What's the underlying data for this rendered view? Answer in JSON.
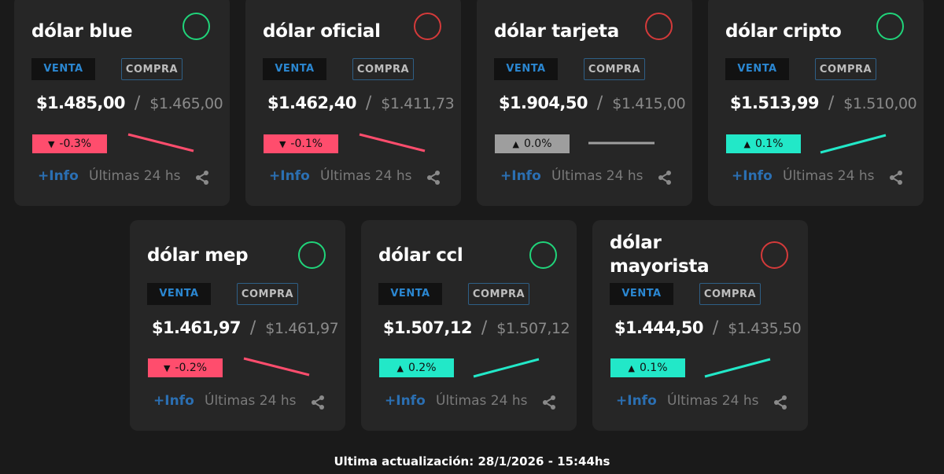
{
  "cards": [
    {
      "title": "dólar blue",
      "trend": "up",
      "venta_label": "VENTA",
      "compra_label": "COMPRA",
      "sell": "$1.485,00",
      "buy": "$1.465,00",
      "change": "-0.3%",
      "direction": "down",
      "info_label": "+Info",
      "period_label": "Últimas 24 hs"
    },
    {
      "title": "dólar oficial",
      "trend": "down",
      "venta_label": "VENTA",
      "compra_label": "COMPRA",
      "sell": "$1.462,40",
      "buy": "$1.411,73",
      "change": "-0.1%",
      "direction": "down",
      "info_label": "+Info",
      "period_label": "Últimas 24 hs"
    },
    {
      "title": "dólar tarjeta",
      "trend": "down",
      "venta_label": "VENTA",
      "compra_label": "COMPRA",
      "sell": "$1.904,50",
      "buy": "$1.415,00",
      "change": "0.0%",
      "direction": "flat",
      "info_label": "+Info",
      "period_label": "Últimas 24 hs"
    },
    {
      "title": "dólar cripto",
      "trend": "up",
      "venta_label": "VENTA",
      "compra_label": "COMPRA",
      "sell": "$1.513,99",
      "buy": "$1.510,00",
      "change": "0.1%",
      "direction": "up",
      "info_label": "+Info",
      "period_label": "Últimas 24 hs"
    },
    {
      "title": "dólar mep",
      "trend": "up",
      "venta_label": "VENTA",
      "compra_label": "COMPRA",
      "sell": "$1.461,97",
      "buy": "$1.461,97",
      "change": "-0.2%",
      "direction": "down",
      "info_label": "+Info",
      "period_label": "Últimas 24 hs"
    },
    {
      "title": "dólar ccl",
      "trend": "up",
      "venta_label": "VENTA",
      "compra_label": "COMPRA",
      "sell": "$1.507,12",
      "buy": "$1.507,12",
      "change": "0.2%",
      "direction": "up",
      "info_label": "+Info",
      "period_label": "Últimas 24 hs"
    },
    {
      "title": "dólar mayorista",
      "trend": "down",
      "venta_label": "VENTA",
      "compra_label": "COMPRA",
      "sell": "$1.444,50",
      "buy": "$1.435,50",
      "change": "0.1%",
      "direction": "up",
      "info_label": "+Info",
      "period_label": "Últimas 24 hs"
    }
  ],
  "footer": {
    "last_update": "Ultima actualización: 28/1/2026 - 15:44hs"
  },
  "colors": {
    "up": "#22e8c8",
    "down": "#ff4d6d",
    "flat": "#9e9e9e",
    "circle_up": "#20d47a",
    "circle_down": "#d43a3a"
  },
  "icons": {
    "share": "share-icon",
    "up_arrow": "triangle-up-icon",
    "down_arrow": "triangle-down-icon"
  }
}
